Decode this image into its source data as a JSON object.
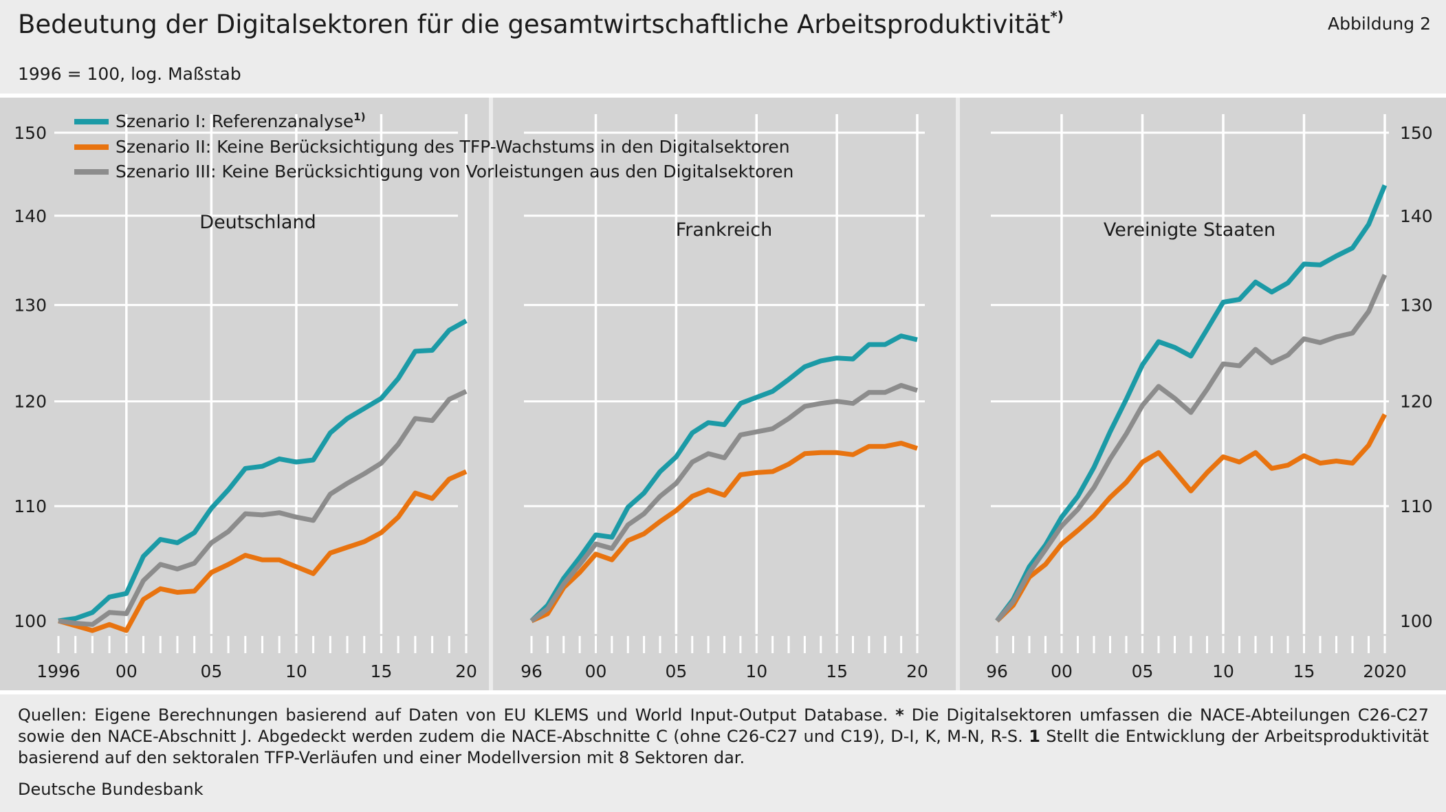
{
  "header": {
    "title": "Bedeutung der Digitalsektoren für die gesamtwirtschaftliche Arbeitsproduktivität",
    "title_note": "*)",
    "figure_label": "Abbildung 2",
    "subtitle": "1996 = 100, log. Maßstab"
  },
  "footer": {
    "footnote_part1": "Quellen: Eigene Berechnungen basierend auf Daten von EU KLEMS und World Input-Output Database. ",
    "footnote_star": "*",
    "footnote_part2": " Die Digitalsektoren umfassen die NACE-Abteilungen C26-C27 sowie den NACE-Abschnitt J. Abgedeckt werden zudem die NACE-Abschnitte C (ohne C26-C27 und C19), D-I, K, M-N, R-S. ",
    "footnote_one": "1",
    "footnote_part3": " Stellt die Entwicklung der Arbeitsproduktivität basierend auf den sektoralen TFP-Verläufen und einer Modellversion mit 8 Sektoren dar.",
    "source": "Deutsche Bundesbank"
  },
  "colors": {
    "scenario_1": "#1b9aa6",
    "scenario_2": "#e8730f",
    "scenario_3": "#8c8c8c",
    "panel_background": "#d4d4d4",
    "grid": "#ffffff"
  },
  "chart_data": [
    {
      "type": "line",
      "title": "Deutschland",
      "scale": "log",
      "ylim": [
        100,
        150
      ],
      "y_ticks": [
        100,
        110,
        120,
        130,
        140,
        150
      ],
      "x_range": [
        1996,
        2020
      ],
      "x_tick_labels": [
        {
          "year": 1996,
          "label": "1996"
        },
        {
          "year": 2000,
          "label": "00"
        },
        {
          "year": 2005,
          "label": "05"
        },
        {
          "year": 2010,
          "label": "10"
        },
        {
          "year": 2015,
          "label": "15"
        },
        {
          "year": 2020,
          "label": "20"
        }
      ],
      "y_axis_side": "left",
      "legend": "top-left",
      "grid": true,
      "x": [
        1996,
        1997,
        1998,
        1999,
        2000,
        2001,
        2002,
        2003,
        2004,
        2005,
        2006,
        2007,
        2008,
        2009,
        2010,
        2011,
        2012,
        2013,
        2014,
        2015,
        2016,
        2017,
        2018,
        2019,
        2020
      ],
      "series": [
        {
          "name": "Szenario I: Referenzanalyse",
          "name_note": "1)",
          "values": [
            100.0,
            100.2,
            100.7,
            102.0,
            102.3,
            105.5,
            107.0,
            106.7,
            107.6,
            109.8,
            111.5,
            113.5,
            113.7,
            114.4,
            114.1,
            114.3,
            116.9,
            118.3,
            119.3,
            120.3,
            122.3,
            125.1,
            125.2,
            127.3,
            128.3
          ]
        },
        {
          "name": "Szenario II: Keine Berücksichtigung des TFP-Wachstums in den Digitalsektoren",
          "values": [
            100.0,
            99.6,
            99.2,
            99.7,
            99.2,
            101.8,
            102.7,
            102.4,
            102.5,
            104.1,
            104.8,
            105.6,
            105.2,
            105.2,
            104.6,
            104.0,
            105.8,
            106.3,
            106.8,
            107.6,
            109.0,
            111.2,
            110.7,
            112.5,
            113.2
          ]
        },
        {
          "name": "Szenario III: Keine Berücksichtigung von Vorleistungen aus den Digitalsektoren",
          "values": [
            100.0,
            99.8,
            99.7,
            100.7,
            100.6,
            103.4,
            104.8,
            104.4,
            104.9,
            106.7,
            107.7,
            109.3,
            109.2,
            109.4,
            109.0,
            108.7,
            111.1,
            112.1,
            113.0,
            114.0,
            115.8,
            118.3,
            118.1,
            120.2,
            121.0
          ]
        }
      ]
    },
    {
      "type": "line",
      "title": "Frankreich",
      "scale": "log",
      "ylim": [
        100,
        150
      ],
      "x_range": [
        1996,
        2020
      ],
      "x_tick_labels": [
        {
          "year": 1996,
          "label": "96"
        },
        {
          "year": 2000,
          "label": "00"
        },
        {
          "year": 2005,
          "label": "05"
        },
        {
          "year": 2010,
          "label": "10"
        },
        {
          "year": 2015,
          "label": "15"
        },
        {
          "year": 2020,
          "label": "20"
        }
      ],
      "grid": true,
      "x": [
        1996,
        1997,
        1998,
        1999,
        2000,
        2001,
        2002,
        2003,
        2004,
        2005,
        2006,
        2007,
        2008,
        2009,
        2010,
        2011,
        2012,
        2013,
        2014,
        2015,
        2016,
        2017,
        2018,
        2019,
        2020
      ],
      "series": [
        {
          "name": "Szenario I: Referenzanalyse",
          "values": [
            100.0,
            101.3,
            103.6,
            105.4,
            107.4,
            107.2,
            109.9,
            111.2,
            113.2,
            114.6,
            116.9,
            117.9,
            117.7,
            119.8,
            120.4,
            121.0,
            122.2,
            123.5,
            124.1,
            124.4,
            124.3,
            125.8,
            125.8,
            126.7,
            126.3
          ]
        },
        {
          "name": "Szenario II: Keine Berücksichtigung des TFP-Wachstums in den Digitalsektoren",
          "values": [
            100.0,
            100.6,
            102.8,
            104.1,
            105.7,
            105.2,
            106.9,
            107.5,
            108.6,
            109.6,
            110.9,
            111.5,
            111.0,
            112.9,
            113.1,
            113.2,
            113.9,
            114.9,
            115.0,
            115.0,
            114.8,
            115.6,
            115.6,
            115.9,
            115.4
          ]
        },
        {
          "name": "Szenario III: Keine Berücksichtigung von Vorleistungen aus den Digitalsektoren",
          "values": [
            100.0,
            101.0,
            103.1,
            104.8,
            106.6,
            106.2,
            108.3,
            109.3,
            110.9,
            112.1,
            114.1,
            114.9,
            114.5,
            116.7,
            117.0,
            117.3,
            118.3,
            119.5,
            119.8,
            120.0,
            119.8,
            120.9,
            120.9,
            121.6,
            121.1
          ]
        }
      ]
    },
    {
      "type": "line",
      "title": "Vereinigte Staaten",
      "scale": "log",
      "ylim": [
        100,
        150
      ],
      "y_ticks": [
        100,
        110,
        120,
        130,
        140,
        150
      ],
      "x_range": [
        1996,
        2020
      ],
      "x_tick_labels": [
        {
          "year": 1996,
          "label": "96"
        },
        {
          "year": 2000,
          "label": "00"
        },
        {
          "year": 2005,
          "label": "05"
        },
        {
          "year": 2010,
          "label": "10"
        },
        {
          "year": 2015,
          "label": "15"
        },
        {
          "year": 2020,
          "label": "2020"
        }
      ],
      "y_axis_side": "right",
      "grid": true,
      "x": [
        1996,
        1997,
        1998,
        1999,
        2000,
        2001,
        2002,
        2003,
        2004,
        2005,
        2006,
        2007,
        2008,
        2009,
        2010,
        2011,
        2012,
        2013,
        2014,
        2015,
        2016,
        2017,
        2018,
        2019,
        2020
      ],
      "series": [
        {
          "name": "Szenario I: Referenzanalyse",
          "values": [
            100.0,
            101.8,
            104.6,
            106.5,
            109.0,
            110.9,
            113.6,
            117.0,
            120.2,
            123.7,
            126.1,
            125.5,
            124.6,
            127.4,
            130.3,
            130.6,
            132.5,
            131.4,
            132.4,
            134.5,
            134.4,
            135.4,
            136.3,
            139.0,
            143.6
          ]
        },
        {
          "name": "Szenario II: Keine Berücksichtigung des TFP-Wachstums in den Digitalsektoren",
          "values": [
            100.0,
            101.3,
            103.7,
            104.8,
            106.6,
            107.8,
            109.1,
            110.8,
            112.2,
            114.1,
            115.0,
            113.2,
            111.4,
            113.1,
            114.6,
            114.1,
            115.0,
            113.5,
            113.8,
            114.7,
            114.0,
            114.2,
            114.0,
            115.7,
            118.7
          ]
        },
        {
          "name": "Szenario III: Keine Berücksichtigung von Vorleistungen aus den Digitalsektoren",
          "values": [
            100.0,
            101.6,
            104.1,
            106.1,
            108.2,
            109.7,
            111.7,
            114.4,
            116.8,
            119.6,
            121.5,
            120.3,
            118.9,
            121.2,
            123.8,
            123.6,
            125.3,
            123.9,
            124.7,
            126.4,
            126.0,
            126.6,
            127.0,
            129.3,
            133.3
          ]
        }
      ]
    }
  ]
}
